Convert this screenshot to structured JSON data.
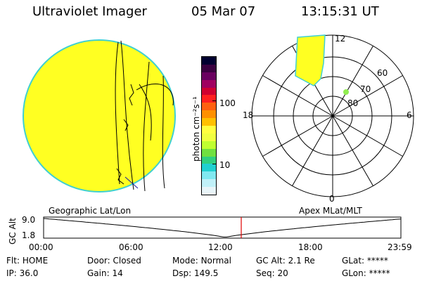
{
  "header": {
    "title": "Ultraviolet Imager",
    "date": "05 Mar 07",
    "time": "13:15:31 UT"
  },
  "colorbar": {
    "unit_label": "photon cm⁻²s⁻¹",
    "ticks": [
      "100",
      "10"
    ],
    "colors": [
      "#000030",
      "#3a0040",
      "#6a0060",
      "#a00060",
      "#d00030",
      "#ff2020",
      "#ff6010",
      "#ff9000",
      "#ffc000",
      "#ffff40",
      "#f0ff40",
      "#c0ff30",
      "#70e040",
      "#30d080",
      "#20d0d0",
      "#80e8f0",
      "#c0f0f8",
      "#e8f4f8"
    ]
  },
  "globe": {
    "fill_color": "#ffff22",
    "rim_color": "#40d0d0"
  },
  "polar": {
    "lat_labels": [
      "60",
      "70",
      "80"
    ],
    "mlt_labels": {
      "top": "12",
      "bottom": "0",
      "left": "18",
      "right": "6"
    },
    "point_color": "#90ee50"
  },
  "labels": {
    "left_projection": "Geographic Lat/Lon",
    "right_projection": "Apex MLat/MLT"
  },
  "altitude_plot": {
    "axis_label": "GC Alt",
    "y_ticks": [
      "9.0",
      "1.8"
    ],
    "x_ticks": [
      "00:00",
      "06:00",
      "12:00",
      "18:00",
      "23:59"
    ],
    "marker_color": "#e00000"
  },
  "info": {
    "row1": [
      {
        "key": "Flt:",
        "val": "HOME"
      },
      {
        "key": "Door:",
        "val": "Closed"
      },
      {
        "key": "Mode:",
        "val": "Normal"
      },
      {
        "key": "GC Alt:",
        "val": "2.1 Re"
      },
      {
        "key": "GLat:",
        "val": "*****"
      }
    ],
    "row2": [
      {
        "key": "IP:",
        "val": "36.0"
      },
      {
        "key": "Gain:",
        "val": "14"
      },
      {
        "key": "Dsp:",
        "val": "149.5"
      },
      {
        "key": "Seq:",
        "val": "20"
      },
      {
        "key": "GLon:",
        "val": "*****"
      }
    ]
  }
}
